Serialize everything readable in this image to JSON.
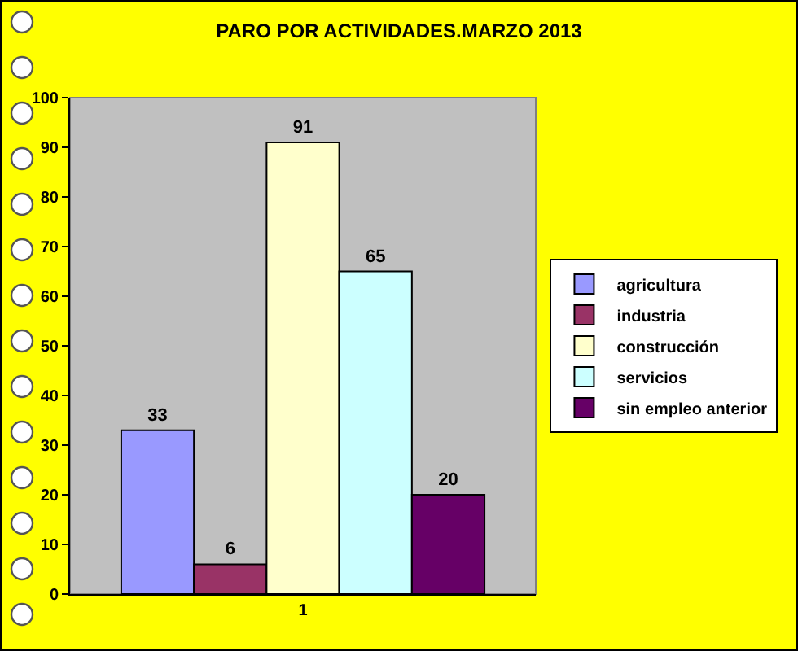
{
  "chart_data": {
    "type": "bar",
    "title": "PARO POR ACTIVIDADES.MARZO 2013",
    "categories": [
      "1"
    ],
    "series": [
      {
        "name": "agricultura",
        "color": "#9999ff",
        "values": [
          33
        ]
      },
      {
        "name": "industria",
        "color": "#993366",
        "values": [
          6
        ]
      },
      {
        "name": "construcción",
        "color": "#ffffcc",
        "values": [
          91
        ]
      },
      {
        "name": "servicios",
        "color": "#ccffff",
        "values": [
          65
        ]
      },
      {
        "name": "sin empleo anterior",
        "color": "#660066",
        "values": [
          20
        ]
      }
    ],
    "ylim": [
      0,
      100
    ],
    "yticks": [
      0,
      10,
      20,
      30,
      40,
      50,
      60,
      70,
      80,
      90,
      100
    ],
    "grid": false,
    "legend": "right",
    "data_labels": true
  }
}
